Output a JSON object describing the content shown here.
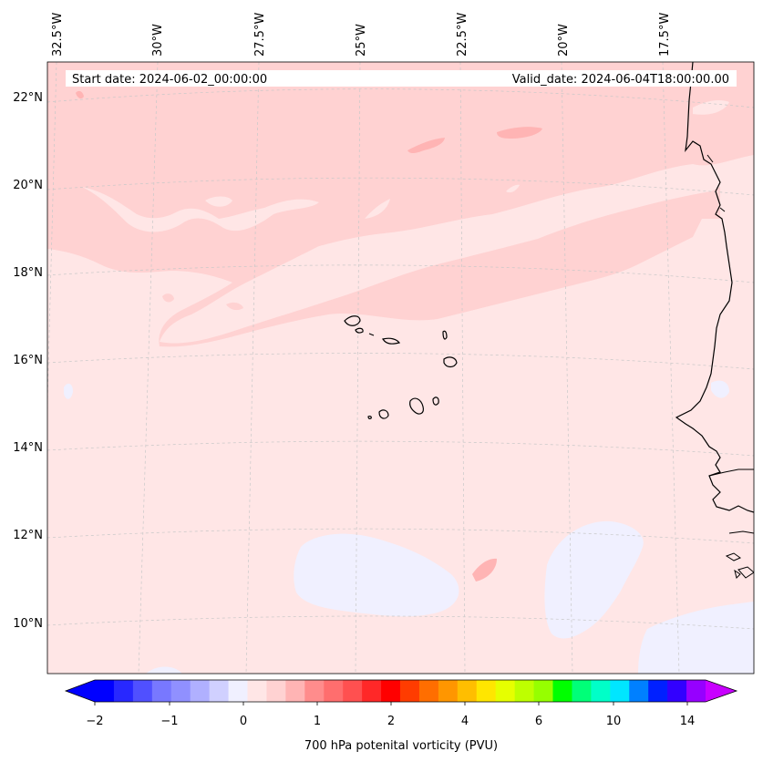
{
  "map": {
    "start_label": "Start date: 2024-06-02_00:00:00",
    "valid_label": "Valid_date: 2024-06-04T18:00:00.00",
    "lon_ticks": [
      "32.5°W",
      "30°W",
      "27.5°W",
      "25°W",
      "22.5°W",
      "20°W",
      "17.5°W"
    ],
    "lat_ticks": [
      "22°N",
      "20°N",
      "18°N",
      "16°N",
      "14°N",
      "12°N",
      "10°N"
    ],
    "field": "700 hPa potential vorticity",
    "background_level_color": "#ffe6e6",
    "band_color": "#ffd2d2",
    "blob_color": "#ffb4b4",
    "negative_color": "#f0f0ff",
    "coast_color": "#000000",
    "grid_color": "#c8c8c8"
  },
  "colorbar": {
    "label": "700 hPa potenital vorticity (PVU)",
    "tick_labels": [
      "−2",
      "−1",
      "0",
      "1",
      "2",
      "4",
      "6",
      "10",
      "14"
    ],
    "colors": [
      "#0000ff",
      "#2828ff",
      "#5050ff",
      "#7878ff",
      "#9090ff",
      "#b0b0ff",
      "#d0d0ff",
      "#f0f0ff",
      "#ffe6e6",
      "#ffd2d2",
      "#ffb4b4",
      "#ff8c8c",
      "#ff6e6e",
      "#ff5050",
      "#ff2828",
      "#ff0000",
      "#ff3c00",
      "#ff6e00",
      "#ff9600",
      "#ffbe00",
      "#ffe600",
      "#e6ff00",
      "#beff00",
      "#96ff00",
      "#00ff00",
      "#00ff78",
      "#00ffc8",
      "#00e6ff",
      "#0080ff",
      "#0020ff",
      "#3200ff",
      "#9600ff"
    ],
    "extend_low_color": "#0000ff",
    "extend_high_color": "#c800ff"
  }
}
